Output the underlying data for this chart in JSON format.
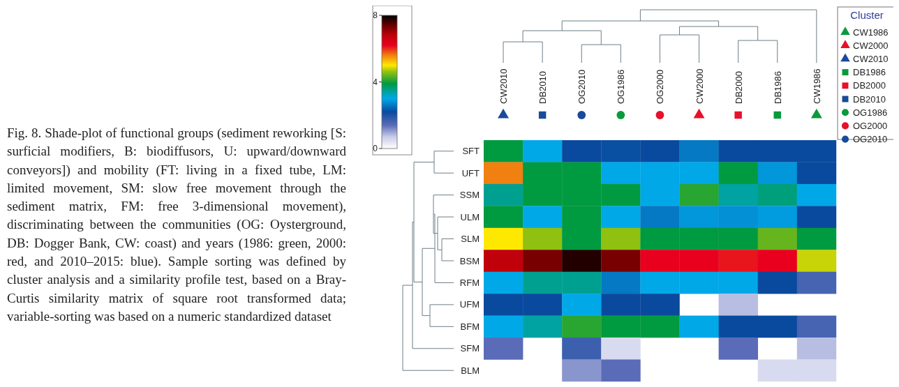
{
  "chart_data": {
    "type": "heatmap",
    "legend_title": "Cluster",
    "legend": "top right",
    "clim": [
      0,
      8
    ],
    "cticks": [
      0,
      4,
      8
    ],
    "annotations": [
      "Fig. 8. Shade-plot of functional groups (sediment reworking [S: surficial modifiers, B: biodiffusors, U: upward/downward conveyors]) and mobility (FT: living in a fixed tube, LM: limited movement, SM: slow free movement through the sediment matrix, FM: free 3-dimensional movement), discriminating between the communities (OG: Oysterground, DB: Dogger Bank, CW: coast) and years (1986: green, 2000: red, and 2010–2015: blue). Sample sorting was defined by cluster analysis and a similarity profile test, based on a Bray-Curtis similarity matrix of square root transformed data; variable-sorting was based on a numeric standardized dataset"
    ],
    "categories": [
      "CW2010",
      "DB2010",
      "OG2010",
      "OG1986",
      "OG2000",
      "CW2000",
      "DB2000",
      "DB1986",
      "CW1986"
    ],
    "y_categories": [
      "SFT",
      "UFT",
      "SSM",
      "ULM",
      "SLM",
      "BSM",
      "RFM",
      "UFM",
      "BFM",
      "SFM",
      "BLM"
    ],
    "cells": [
      [
        3.9,
        3.0,
        2.2,
        2.25,
        2.2,
        2.6,
        2.2,
        2.2,
        2.2
      ],
      [
        5.6,
        3.9,
        3.9,
        3.0,
        3.0,
        3.0,
        3.9,
        2.85,
        2.2
      ],
      [
        3.5,
        3.9,
        3.9,
        3.9,
        3.0,
        4.1,
        3.4,
        3.6,
        3.0
      ],
      [
        3.9,
        3.0,
        3.9,
        3.0,
        2.6,
        2.85,
        2.8,
        2.9,
        2.2
      ],
      [
        5.0,
        4.6,
        3.9,
        4.6,
        3.9,
        3.9,
        3.9,
        4.4,
        3.9
      ],
      [
        6.8,
        7.3,
        7.8,
        7.3,
        6.2,
        6.2,
        6.1,
        6.2,
        4.8
      ],
      [
        3.0,
        3.5,
        3.5,
        2.6,
        3.0,
        3.0,
        3.0,
        2.2,
        1.6
      ],
      [
        2.2,
        2.2,
        3.0,
        2.2,
        2.2,
        null,
        0.8,
        null,
        null
      ],
      [
        3.0,
        3.4,
        4.1,
        3.9,
        3.9,
        3.0,
        2.2,
        2.2,
        1.6
      ],
      [
        1.4,
        null,
        1.7,
        0.5,
        null,
        null,
        1.4,
        null,
        0.8
      ],
      [
        null,
        null,
        1.1,
        1.4,
        null,
        null,
        null,
        0.5,
        0.5
      ]
    ],
    "series": [
      {
        "name": "CW1986",
        "type": "scatter",
        "marker": "triangle",
        "color": "#0a9a3c",
        "x": [
          "CW1986"
        ],
        "values": [
          null
        ]
      },
      {
        "name": "CW2000",
        "type": "scatter",
        "marker": "triangle",
        "color": "#e8102a",
        "x": [
          "CW2000"
        ],
        "values": [
          null
        ]
      },
      {
        "name": "CW2010",
        "type": "scatter",
        "marker": "triangle",
        "color": "#1a4a9a",
        "x": [
          "CW2010"
        ],
        "values": [
          null
        ]
      },
      {
        "name": "DB1986",
        "type": "scatter",
        "marker": "square",
        "color": "#0a9a3c",
        "x": [
          "DB1986"
        ],
        "values": [
          null
        ]
      },
      {
        "name": "DB2000",
        "type": "scatter",
        "marker": "square",
        "color": "#e8102a",
        "x": [
          "DB2000"
        ],
        "values": [
          null
        ]
      },
      {
        "name": "DB2010",
        "type": "scatter",
        "marker": "square",
        "color": "#1a4a9a",
        "x": [
          "DB2010"
        ],
        "values": [
          null
        ]
      },
      {
        "name": "OG1986",
        "type": "scatter",
        "marker": "circle",
        "color": "#0a9a3c",
        "x": [
          "OG1986"
        ],
        "values": [
          null
        ]
      },
      {
        "name": "OG2000",
        "type": "scatter",
        "marker": "circle",
        "color": "#e8102a",
        "x": [
          "OG2000"
        ],
        "values": [
          null
        ]
      },
      {
        "name": "OG2010",
        "type": "scatter",
        "marker": "circle",
        "color": "#1a4a9a",
        "x": [
          "OG2010"
        ],
        "values": [
          null
        ]
      }
    ]
  }
}
